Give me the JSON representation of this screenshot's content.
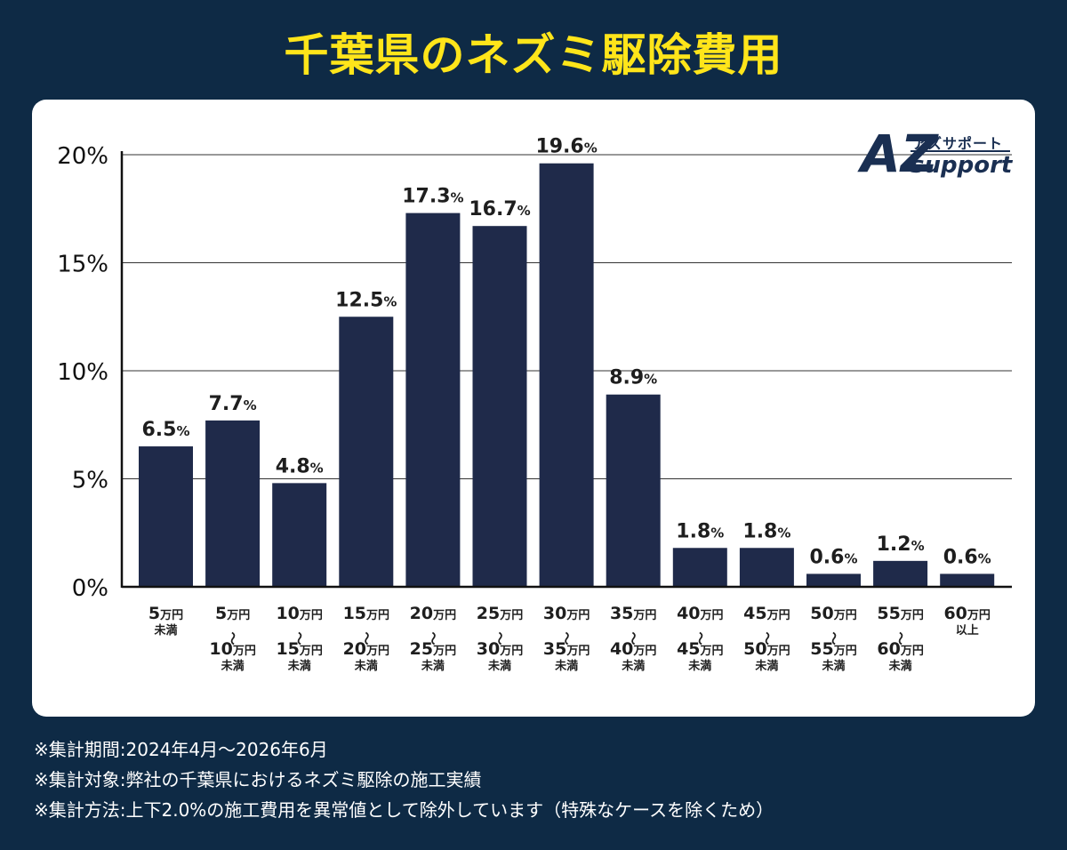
{
  "title": "千葉県のネズミ駆除費用",
  "logo": {
    "mark": "AZ",
    "jp": "アズサポート",
    "en": "support"
  },
  "notes": [
    "※集計期間:2024年4月～2026年6月",
    "※集計対象:弊社の千葉県におけるネズミ駆除の施工実績",
    "※集計方法:上下2.0%の施工費用を異常値として除外しています（特殊なケースを除くため）"
  ],
  "colors": {
    "bar": "#1f2a4a",
    "background": "#0e2a45",
    "title": "#ffe51a"
  },
  "chart_data": {
    "type": "bar",
    "title": "千葉県のネズミ駆除費用",
    "xlabel": "",
    "ylabel": "",
    "ylim": [
      0,
      20
    ],
    "yticks": [
      "0%",
      "5%",
      "10%",
      "15%",
      "20%"
    ],
    "grid": true,
    "categories": [
      [
        "5万円",
        "未満"
      ],
      [
        "5万円",
        "〜",
        "10万円",
        "未満"
      ],
      [
        "10万円",
        "〜",
        "15万円",
        "未満"
      ],
      [
        "15万円",
        "〜",
        "20万円",
        "未満"
      ],
      [
        "20万円",
        "〜",
        "25万円",
        "未満"
      ],
      [
        "25万円",
        "〜",
        "30万円",
        "未満"
      ],
      [
        "30万円",
        "〜",
        "35万円",
        "未満"
      ],
      [
        "35万円",
        "〜",
        "40万円",
        "未満"
      ],
      [
        "40万円",
        "〜",
        "45万円",
        "未満"
      ],
      [
        "45万円",
        "〜",
        "50万円",
        "未満"
      ],
      [
        "50万円",
        "〜",
        "55万円",
        "未満"
      ],
      [
        "55万円",
        "〜",
        "60万円",
        "未満"
      ],
      [
        "60万円",
        "以上"
      ]
    ],
    "values": [
      6.5,
      7.7,
      4.8,
      12.5,
      17.3,
      16.7,
      19.6,
      8.9,
      1.8,
      1.8,
      0.6,
      1.2,
      0.6
    ],
    "value_labels": [
      "6.5%",
      "7.7%",
      "4.8%",
      "12.5%",
      "17.3%",
      "16.7%",
      "19.6%",
      "8.9%",
      "1.8%",
      "1.8%",
      "0.6%",
      "1.2%",
      "0.6%"
    ]
  }
}
